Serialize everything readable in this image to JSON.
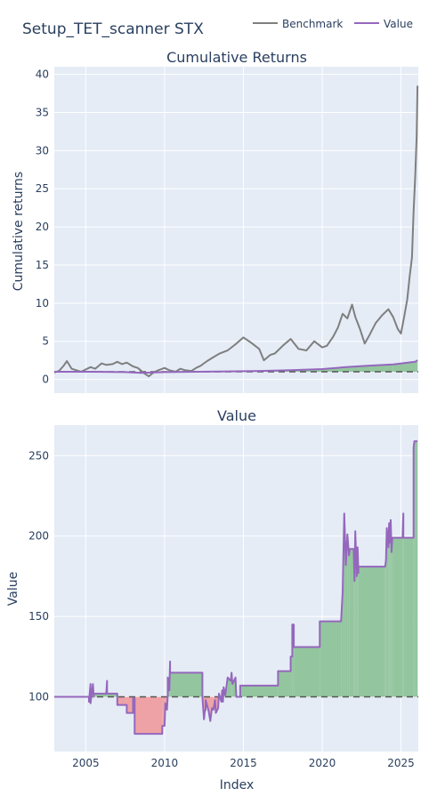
{
  "title": "Setup_TET_scanner STX",
  "legend": {
    "placement": "top-right",
    "items": [
      {
        "label": "Benchmark",
        "color": "#7f7f7f"
      },
      {
        "label": "Value",
        "color": "#9467bd"
      }
    ]
  },
  "colors": {
    "plot_bg": "#e5ecf6",
    "grid": "#ffffff",
    "benchmark": "#7f7f7f",
    "value": "#9467bd",
    "gain_fill": "#93c69e",
    "loss_fill": "#eea2a5",
    "baseline": "#555555"
  },
  "chart_data": [
    {
      "type": "line",
      "title": "Cumulative Returns",
      "xlabel": "",
      "ylabel": "Cumulative returns",
      "xlim": [
        2003.0,
        2026.1
      ],
      "ylim": [
        -1.8,
        41
      ],
      "x_ticks": [
        2005,
        2010,
        2015,
        2020,
        2025
      ],
      "x_tick_labels": [
        "2005",
        "2010",
        "2015",
        "2020",
        "2025"
      ],
      "y_ticks": [
        0,
        5,
        10,
        15,
        20,
        25,
        30,
        35,
        40
      ],
      "y_tick_labels": [
        "0",
        "5",
        "10",
        "15",
        "20",
        "25",
        "30",
        "35",
        "40"
      ],
      "grid": true,
      "baseline": 1,
      "series": [
        {
          "name": "Benchmark",
          "x": [
            2003.0,
            2003.3,
            2003.6,
            2003.8,
            2004.1,
            2004.4,
            2004.7,
            2005.0,
            2005.3,
            2005.6,
            2006.0,
            2006.3,
            2006.7,
            2007.0,
            2007.3,
            2007.6,
            2008.0,
            2008.3,
            2008.7,
            2009.0,
            2009.3,
            2009.6,
            2010.0,
            2010.3,
            2010.7,
            2011.0,
            2011.3,
            2011.7,
            2012.0,
            2012.3,
            2012.7,
            2013.0,
            2013.5,
            2014.0,
            2014.5,
            2015.0,
            2015.5,
            2016.0,
            2016.3,
            2016.7,
            2017.0,
            2017.5,
            2018.0,
            2018.5,
            2019.0,
            2019.5,
            2020.0,
            2020.3,
            2020.7,
            2021.0,
            2021.3,
            2021.6,
            2021.9,
            2022.1,
            2022.4,
            2022.7,
            2023.0,
            2023.4,
            2023.8,
            2024.2,
            2024.5,
            2024.8,
            2025.0,
            2025.2,
            2025.4,
            2025.55,
            2025.7,
            2025.8,
            2025.9,
            2026.0,
            2026.05
          ],
          "values": [
            0.9,
            1.1,
            1.8,
            2.4,
            1.4,
            1.2,
            1.0,
            1.3,
            1.6,
            1.4,
            2.1,
            1.9,
            2.0,
            2.3,
            2.0,
            2.2,
            1.7,
            1.5,
            0.8,
            0.4,
            0.9,
            1.2,
            1.5,
            1.2,
            1.0,
            1.4,
            1.2,
            1.1,
            1.5,
            1.8,
            2.4,
            2.8,
            3.4,
            3.8,
            4.6,
            5.5,
            4.8,
            4.0,
            2.5,
            3.2,
            3.4,
            4.4,
            5.3,
            4.0,
            3.8,
            5.0,
            4.2,
            4.4,
            5.6,
            6.8,
            8.6,
            8.0,
            9.8,
            8.2,
            6.6,
            4.7,
            5.8,
            7.4,
            8.4,
            9.2,
            8.2,
            6.6,
            6.0,
            8.2,
            10.5,
            13.5,
            16.0,
            22.0,
            26.5,
            32.0,
            38.5
          ]
        },
        {
          "name": "Value",
          "x": [
            2003.0,
            2005.5,
            2007.5,
            2008.5,
            2010.0,
            2012.0,
            2014.0,
            2016.0,
            2018.0,
            2020.0,
            2021.5,
            2023.0,
            2024.5,
            2025.9,
            2026.05
          ],
          "values": [
            1.0,
            1.0,
            0.95,
            0.85,
            0.95,
            1.0,
            1.05,
            1.1,
            1.2,
            1.35,
            1.6,
            1.8,
            1.95,
            2.3,
            2.5
          ]
        }
      ]
    },
    {
      "type": "line",
      "title": "Value",
      "xlabel": "Index",
      "ylabel": "Value",
      "xlim": [
        2003.0,
        2026.1
      ],
      "ylim": [
        66,
        269
      ],
      "x_ticks": [
        2005,
        2010,
        2015,
        2020,
        2025
      ],
      "x_tick_labels": [
        "2005",
        "2010",
        "2015",
        "2020",
        "2025"
      ],
      "y_ticks": [
        100,
        150,
        200,
        250
      ],
      "y_tick_labels": [
        "100",
        "150",
        "200",
        "250"
      ],
      "grid": true,
      "baseline": 100,
      "series": [
        {
          "name": "Value",
          "x": [
            2003.0,
            2005.2,
            2005.2,
            2005.3,
            2005.3,
            2005.45,
            2005.5,
            2005.5,
            2006.0,
            2006.3,
            2006.35,
            2006.35,
            2007.0,
            2007.0,
            2007.6,
            2007.6,
            2008.0,
            2008.0,
            2008.1,
            2008.1,
            2009.85,
            2009.85,
            2010.0,
            2010.05,
            2010.15,
            2010.2,
            2010.2,
            2010.3,
            2010.35,
            2010.35,
            2012.4,
            2012.4,
            2012.5,
            2012.55,
            2012.6,
            2012.6,
            2012.8,
            2012.9,
            2013.0,
            2013.1,
            2013.2,
            2013.25,
            2013.4,
            2013.45,
            2013.6,
            2013.65,
            2013.7,
            2013.75,
            2013.85,
            2014.0,
            2014.2,
            2014.25,
            2014.3,
            2014.5,
            2014.55,
            2014.8,
            2014.8,
            2015.0,
            2015.0,
            2017.2,
            2017.2,
            2018.0,
            2018.0,
            2018.1,
            2018.1,
            2018.2,
            2018.2,
            2019.85,
            2019.85,
            2021.2,
            2021.3,
            2021.4,
            2021.5,
            2021.6,
            2021.7,
            2021.75,
            2022.0,
            2022.05,
            2022.1,
            2022.2,
            2022.25,
            2022.3,
            2022.3,
            2024.0,
            2024.05,
            2024.1,
            2024.2,
            2024.25,
            2024.3,
            2024.35,
            2024.4,
            2024.45,
            2024.55,
            2024.55,
            2025.0,
            2025.1,
            2025.15,
            2025.15,
            2025.8,
            2025.8,
            2025.85,
            2025.9,
            2026.05
          ],
          "values": [
            100,
            100,
            97,
            108,
            96,
            108,
            100,
            102,
            102,
            102,
            110,
            102,
            102,
            95,
            95,
            90,
            90,
            99,
            99,
            77,
            77,
            82,
            82,
            96,
            92,
            101,
            112,
            104,
            122,
            115,
            115,
            100,
            86,
            91,
            92,
            98,
            91,
            85,
            93,
            92,
            98,
            90,
            93,
            102,
            97,
            104,
            97,
            106,
            101,
            112,
            110,
            115,
            108,
            112,
            100,
            100,
            107,
            107,
            107,
            107,
            116,
            116,
            125,
            125,
            145,
            145,
            131,
            131,
            147,
            147,
            165,
            214,
            182,
            201,
            188,
            192,
            192,
            172,
            203,
            175,
            193,
            177,
            181,
            181,
            185,
            205,
            193,
            208,
            196,
            210,
            190,
            199,
            199,
            199,
            199,
            199,
            214,
            199,
            199,
            255,
            259,
            259,
            259
          ]
        }
      ]
    }
  ]
}
